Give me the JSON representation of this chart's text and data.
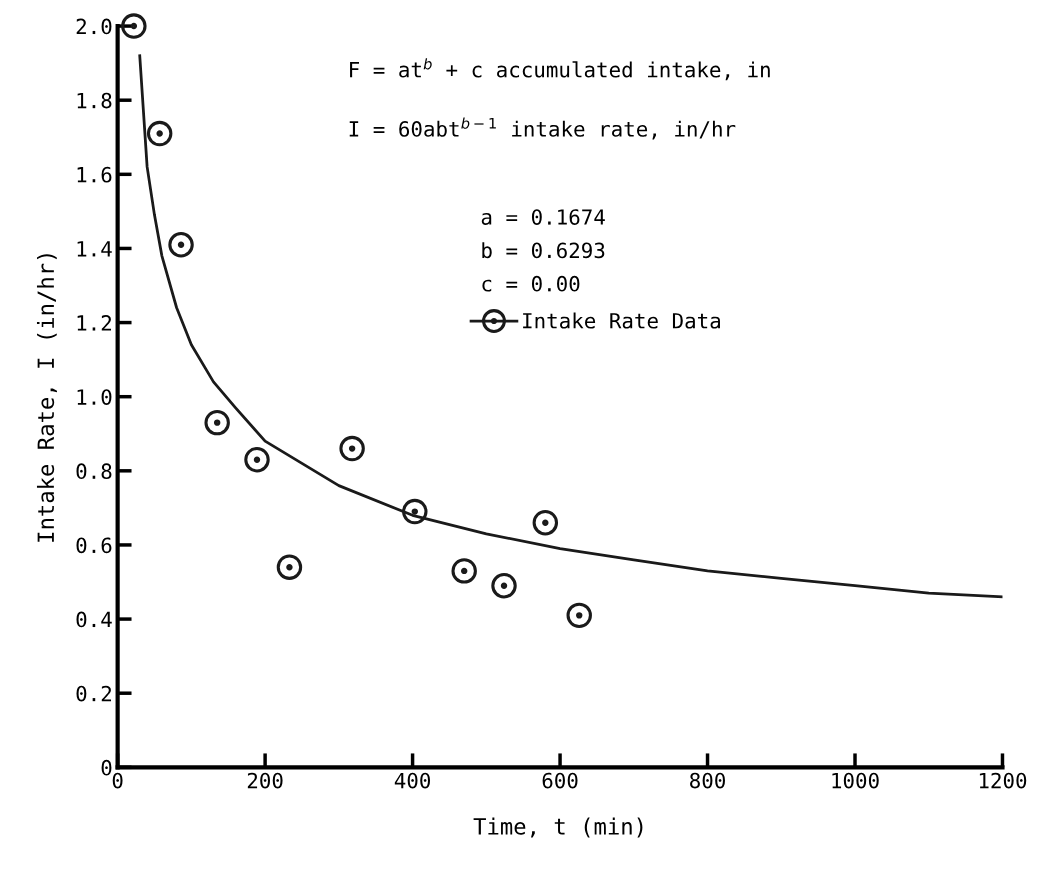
{
  "chart_data": {
    "type": "scatter",
    "xlabel": "Time, t (min)",
    "ylabel": "Intake Rate, I (in/hr)",
    "xlim": [
      0,
      1200
    ],
    "xticks": [
      0,
      200,
      400,
      600,
      800,
      1000,
      1200
    ],
    "ylim": [
      0,
      2.0
    ],
    "yticks": [
      0,
      0.2,
      0.4,
      0.6,
      0.8,
      {
        "value": 1.0,
        "label": "1.0"
      },
      1.2,
      1.4,
      1.6,
      1.8,
      {
        "value": 2.0,
        "label": "2.0"
      }
    ],
    "legend": "top right",
    "annotations": [
      "F = at$^{b}$ + c accumulated intake, in",
      "I = 60abt$^{b−1}$ intake rate, in/hr",
      "a = 0.1674",
      "b = 0.6293",
      "c = 0.00"
    ],
    "series": [
      {
        "name": "Intake Rate Data",
        "marker": "circle",
        "color": "#1a1a1a",
        "x": [
          22,
          57,
          86,
          135,
          189,
          233,
          318,
          403,
          470,
          524,
          580,
          626
        ],
        "values": [
          2.0,
          1.71,
          1.41,
          0.93,
          0.83,
          0.54,
          0.86,
          0.69,
          0.53,
          0.49,
          0.66,
          0.41
        ]
      },
      {
        "type": "line",
        "color": "#1a1a1a",
        "marker": "none",
        "line_style": "solid",
        "x": [
          30,
          40,
          50,
          60,
          80,
          100,
          130,
          160,
          200,
          250,
          300,
          400,
          500,
          600,
          700,
          800,
          900,
          1000,
          1100,
          1200
        ],
        "values": [
          1.92,
          1.62,
          1.49,
          1.38,
          1.24,
          1.14,
          1.04,
          0.97,
          0.88,
          0.82,
          0.76,
          0.68,
          0.63,
          0.59,
          0.56,
          0.53,
          0.51,
          0.49,
          0.47,
          0.46
        ]
      }
    ]
  }
}
